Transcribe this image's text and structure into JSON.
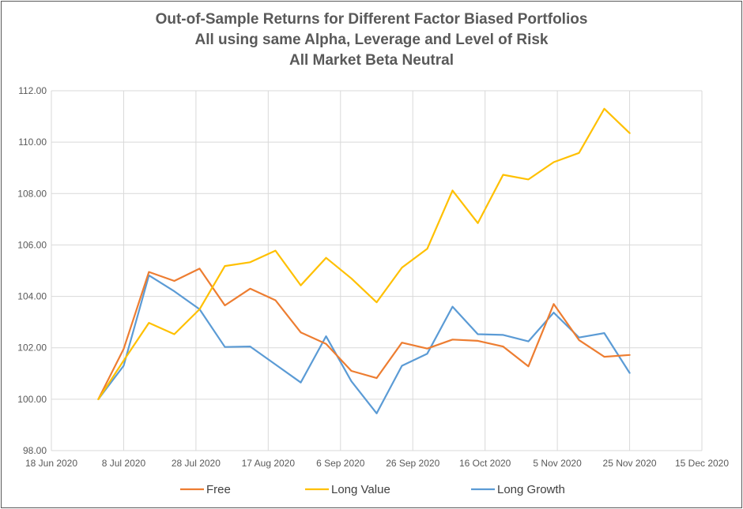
{
  "chart_data": {
    "type": "line",
    "title_lines": [
      "Out-of-Sample Returns for Different Factor Biased Portfolios",
      "All using same Alpha, Leverage and Level of Risk",
      "All Market Beta Neutral"
    ],
    "xlabel": "",
    "ylabel": "",
    "ylim": [
      98,
      112
    ],
    "y_ticks": [
      "98.00",
      "100.00",
      "102.00",
      "104.00",
      "106.00",
      "108.00",
      "110.00",
      "112.00"
    ],
    "x_ticks": [
      "18 Jun 2020",
      "8 Jul 2020",
      "28 Jul 2020",
      "17 Aug 2020",
      "6 Sep 2020",
      "26 Sep 2020",
      "16 Oct 2020",
      "5 Nov 2020",
      "25 Nov 2020",
      "15 Dec 2020"
    ],
    "grid": true,
    "legend_position": "bottom",
    "x": [
      "2020-07-01",
      "2020-07-08",
      "2020-07-15",
      "2020-07-22",
      "2020-07-29",
      "2020-08-05",
      "2020-08-12",
      "2020-08-19",
      "2020-08-26",
      "2020-09-02",
      "2020-09-09",
      "2020-09-16",
      "2020-09-23",
      "2020-09-30",
      "2020-10-07",
      "2020-10-14",
      "2020-10-21",
      "2020-10-28",
      "2020-11-04",
      "2020-11-11",
      "2020-11-18",
      "2020-11-25"
    ],
    "series": [
      {
        "name": "Free",
        "color": "#ED7D31",
        "values": [
          100.0,
          101.95,
          104.95,
          104.6,
          105.08,
          103.65,
          104.3,
          103.85,
          102.6,
          102.15,
          101.1,
          100.82,
          102.2,
          101.97,
          102.32,
          102.27,
          102.05,
          101.28,
          103.7,
          102.3,
          101.65,
          101.72
        ]
      },
      {
        "name": "Long Value",
        "color": "#FFC000",
        "values": [
          100.0,
          101.5,
          102.97,
          102.53,
          103.5,
          105.18,
          105.33,
          105.78,
          104.43,
          105.5,
          104.7,
          103.77,
          105.12,
          105.85,
          108.12,
          106.85,
          108.73,
          108.55,
          109.22,
          109.58,
          111.3,
          110.35
        ]
      },
      {
        "name": "Long Growth",
        "color": "#5B9BD5",
        "values": [
          100.0,
          101.3,
          104.82,
          104.2,
          103.5,
          102.03,
          102.05,
          101.35,
          100.65,
          102.45,
          100.7,
          99.45,
          101.3,
          101.77,
          103.6,
          102.53,
          102.5,
          102.25,
          103.37,
          102.4,
          102.57,
          101.02
        ]
      }
    ]
  }
}
